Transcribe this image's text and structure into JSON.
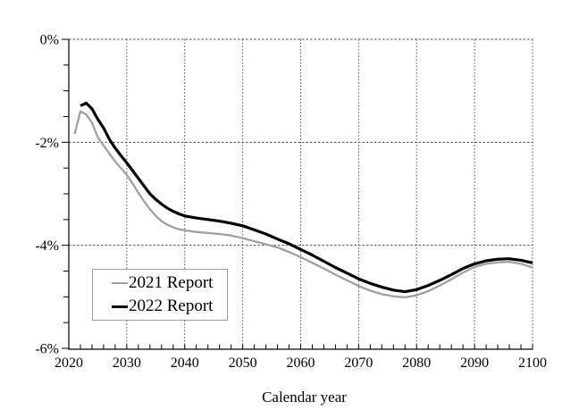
{
  "figure": {
    "background_color": "#ffffff",
    "axis_color": "#000000",
    "grid_color": "#4a4a4a"
  },
  "chart_data": {
    "type": "line",
    "title": "",
    "xlabel": "Calendar year",
    "ylabel": "",
    "xlim": [
      2020,
      2100
    ],
    "ylim": [
      -6,
      0
    ],
    "x_tick_values": [
      2020,
      2030,
      2040,
      2050,
      2060,
      2070,
      2080,
      2090,
      2100
    ],
    "x_tick_labels": [
      "2020",
      "2030",
      "2040",
      "2050",
      "2060",
      "2070",
      "2080",
      "2090",
      "2100"
    ],
    "x_minor_tick_step": 2,
    "y_tick_values": [
      0,
      -2,
      -4,
      -6
    ],
    "y_tick_labels": [
      "0%",
      "-2%",
      "-4%",
      "-6%"
    ],
    "y_minor_tick_step": 0.5,
    "grid": "dotted gridlines at every labeled major tick",
    "legend": {
      "position": "lower-left",
      "border_color": "#9e9e9e",
      "entries": [
        {
          "label": "2021 Report",
          "color": "#a0a0a0",
          "line_thickness": 2
        },
        {
          "label": "2022 Report",
          "color": "#000000",
          "line_thickness": 3
        }
      ]
    },
    "series": [
      {
        "name": "2021 Report",
        "color": "#a0a0a0",
        "stroke_width": 2.3,
        "points": [
          [
            2021,
            -1.84
          ],
          [
            2022,
            -1.4
          ],
          [
            2023,
            -1.46
          ],
          [
            2024,
            -1.62
          ],
          [
            2025,
            -1.9
          ],
          [
            2026,
            -2.06
          ],
          [
            2027,
            -2.22
          ],
          [
            2028,
            -2.37
          ],
          [
            2029,
            -2.5
          ],
          [
            2030,
            -2.63
          ],
          [
            2031,
            -2.8
          ],
          [
            2032,
            -2.98
          ],
          [
            2033,
            -3.15
          ],
          [
            2034,
            -3.3
          ],
          [
            2035,
            -3.43
          ],
          [
            2036,
            -3.53
          ],
          [
            2037,
            -3.6
          ],
          [
            2038,
            -3.65
          ],
          [
            2039,
            -3.69
          ],
          [
            2040,
            -3.71
          ],
          [
            2042,
            -3.74
          ],
          [
            2044,
            -3.76
          ],
          [
            2046,
            -3.78
          ],
          [
            2048,
            -3.81
          ],
          [
            2050,
            -3.86
          ],
          [
            2052,
            -3.92
          ],
          [
            2054,
            -3.98
          ],
          [
            2056,
            -4.04
          ],
          [
            2058,
            -4.13
          ],
          [
            2060,
            -4.23
          ],
          [
            2062,
            -4.34
          ],
          [
            2064,
            -4.45
          ],
          [
            2066,
            -4.57
          ],
          [
            2068,
            -4.68
          ],
          [
            2070,
            -4.79
          ],
          [
            2072,
            -4.88
          ],
          [
            2074,
            -4.95
          ],
          [
            2076,
            -4.99
          ],
          [
            2078,
            -5.01
          ],
          [
            2080,
            -4.97
          ],
          [
            2082,
            -4.89
          ],
          [
            2084,
            -4.78
          ],
          [
            2086,
            -4.66
          ],
          [
            2088,
            -4.53
          ],
          [
            2090,
            -4.42
          ],
          [
            2092,
            -4.36
          ],
          [
            2094,
            -4.33
          ],
          [
            2096,
            -4.32
          ],
          [
            2098,
            -4.36
          ],
          [
            2100,
            -4.43
          ]
        ]
      },
      {
        "name": "2022 Report",
        "color": "#000000",
        "stroke_width": 3.2,
        "points": [
          [
            2022,
            -1.29
          ],
          [
            2023,
            -1.24
          ],
          [
            2024,
            -1.35
          ],
          [
            2025,
            -1.55
          ],
          [
            2026,
            -1.72
          ],
          [
            2027,
            -1.94
          ],
          [
            2028,
            -2.11
          ],
          [
            2029,
            -2.26
          ],
          [
            2030,
            -2.4
          ],
          [
            2031,
            -2.55
          ],
          [
            2032,
            -2.7
          ],
          [
            2033,
            -2.85
          ],
          [
            2034,
            -3.0
          ],
          [
            2035,
            -3.11
          ],
          [
            2036,
            -3.2
          ],
          [
            2037,
            -3.28
          ],
          [
            2038,
            -3.34
          ],
          [
            2039,
            -3.39
          ],
          [
            2040,
            -3.43
          ],
          [
            2042,
            -3.47
          ],
          [
            2044,
            -3.5
          ],
          [
            2046,
            -3.53
          ],
          [
            2048,
            -3.57
          ],
          [
            2050,
            -3.62
          ],
          [
            2052,
            -3.7
          ],
          [
            2054,
            -3.78
          ],
          [
            2056,
            -3.88
          ],
          [
            2058,
            -3.97
          ],
          [
            2060,
            -4.08
          ],
          [
            2062,
            -4.19
          ],
          [
            2064,
            -4.31
          ],
          [
            2066,
            -4.43
          ],
          [
            2068,
            -4.54
          ],
          [
            2070,
            -4.65
          ],
          [
            2072,
            -4.74
          ],
          [
            2074,
            -4.81
          ],
          [
            2076,
            -4.87
          ],
          [
            2078,
            -4.9
          ],
          [
            2080,
            -4.86
          ],
          [
            2082,
            -4.78
          ],
          [
            2084,
            -4.68
          ],
          [
            2086,
            -4.57
          ],
          [
            2088,
            -4.45
          ],
          [
            2090,
            -4.36
          ],
          [
            2092,
            -4.3
          ],
          [
            2094,
            -4.27
          ],
          [
            2096,
            -4.26
          ],
          [
            2098,
            -4.29
          ],
          [
            2100,
            -4.34
          ]
        ]
      }
    ]
  }
}
